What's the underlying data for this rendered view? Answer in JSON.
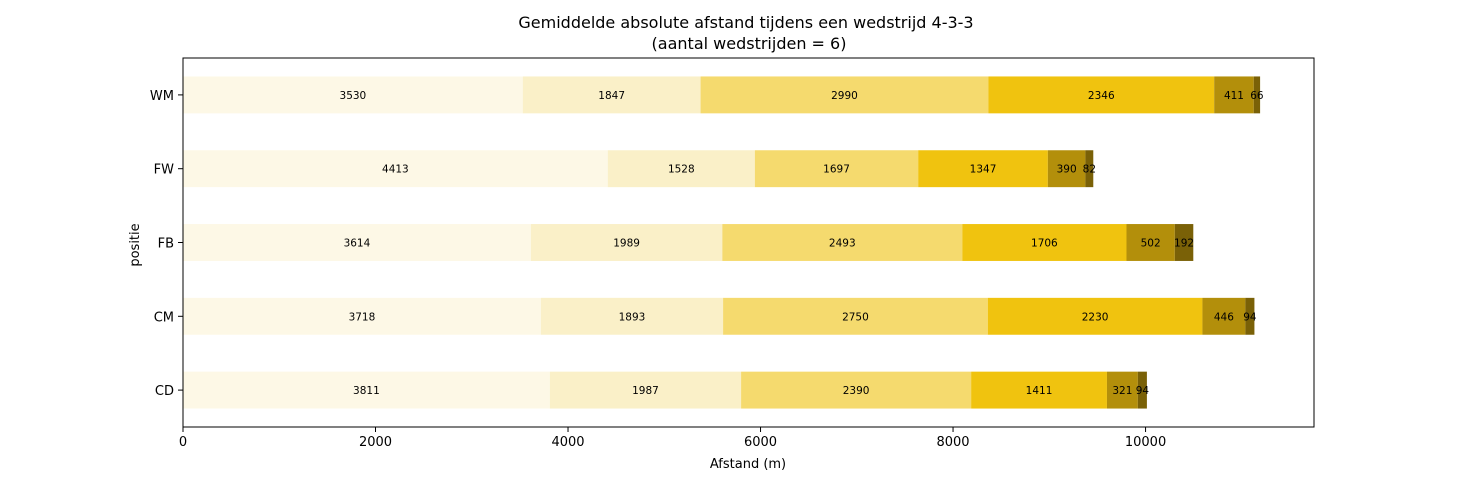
{
  "chart_data": {
    "type": "bar",
    "orientation": "horizontal",
    "stacked": true,
    "title": "Gemiddelde absolute afstand tijdens een wedstrijd 4-3-3",
    "subtitle": "(aantal wedstrijden = 6)",
    "xlabel": "Afstand (m)",
    "ylabel": "positie",
    "xlim": [
      0,
      11750
    ],
    "xticks": [
      0,
      2000,
      4000,
      6000,
      8000,
      10000
    ],
    "xtick_labels": [
      "0",
      "2000",
      "4000",
      "6000",
      "8000",
      "10000"
    ],
    "categories": [
      "CD",
      "CM",
      "FB",
      "FW",
      "WM"
    ],
    "series": [
      {
        "color": "#fdf8e6",
        "values": [
          3811,
          3718,
          3614,
          4413,
          3530
        ]
      },
      {
        "color": "#faf0c8",
        "values": [
          1987,
          1893,
          1989,
          1528,
          1847
        ]
      },
      {
        "color": "#f5da6e",
        "values": [
          2390,
          2750,
          2493,
          1697,
          2990
        ]
      },
      {
        "color": "#f0c30f",
        "values": [
          1411,
          2230,
          1706,
          1347,
          2346
        ]
      },
      {
        "color": "#b38f0b",
        "values": [
          321,
          446,
          502,
          390,
          411
        ]
      },
      {
        "color": "#7a6107",
        "values": [
          94,
          94,
          192,
          82,
          66
        ]
      }
    ],
    "grid": false,
    "legend": "none"
  }
}
